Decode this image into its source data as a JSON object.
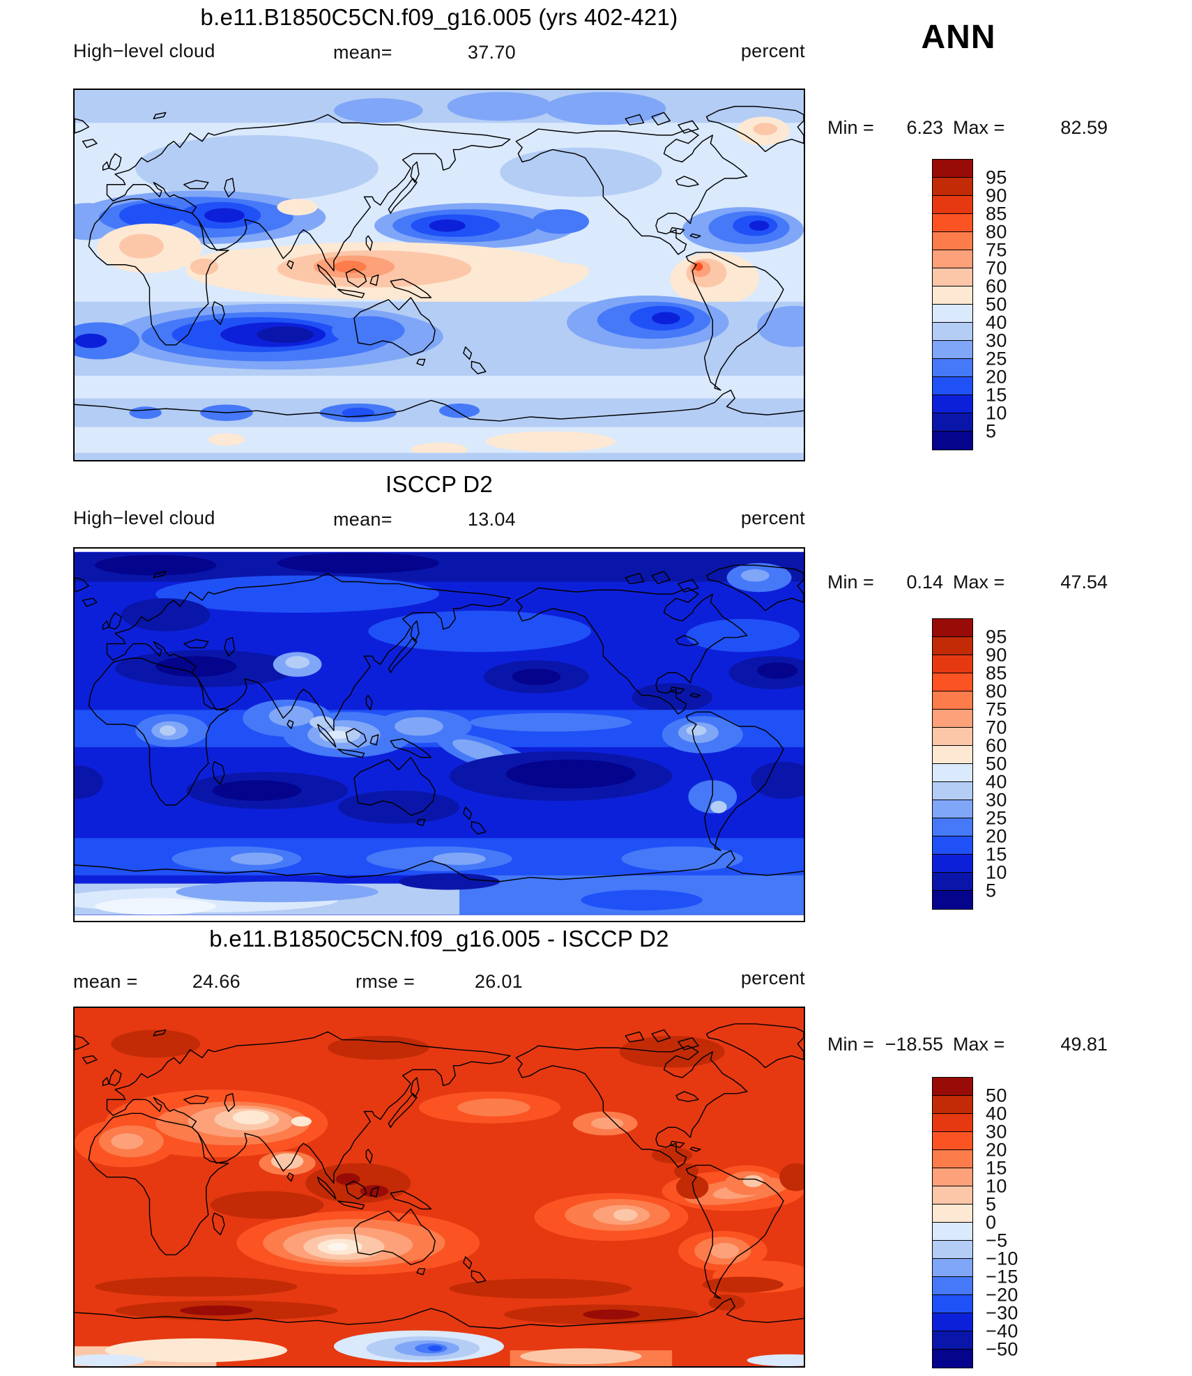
{
  "page": {
    "season": "ANN",
    "background": "#ffffff",
    "text_color": "#000000"
  },
  "colorbar_palette": [
    "#990b06",
    "#c22b06",
    "#e63911",
    "#fc5323",
    "#fc7c4b",
    "#fca179",
    "#fcc7a9",
    "#fde8d3",
    "#dae9fc",
    "#b4cdf5",
    "#80a6f7",
    "#4579f8",
    "#2051f6",
    "#0d20d9",
    "#0a16a9",
    "#04048d"
  ],
  "panels": [
    {
      "title": "b.e11.B1850C5CN.f09_g16.005 (yrs 402-421)",
      "variable": "High−level cloud",
      "units": "percent",
      "stats": [
        {
          "label": "mean=",
          "value": "37.70"
        }
      ],
      "minmax": {
        "min_label": "Min =",
        "min_value": "6.23",
        "max_label": "Max =",
        "max_value": "82.59"
      },
      "colorbar_labels": [
        "95",
        "90",
        "85",
        "80",
        "75",
        "70",
        "60",
        "50",
        "40",
        "30",
        "25",
        "20",
        "15",
        "10",
        "5"
      ]
    },
    {
      "title": "ISCCP D2",
      "variable": "High−level cloud",
      "units": "percent",
      "stats": [
        {
          "label": "mean=",
          "value": "13.04"
        }
      ],
      "minmax": {
        "min_label": "Min =",
        "min_value": "0.14",
        "max_label": "Max =",
        "max_value": "47.54"
      },
      "colorbar_labels": [
        "95",
        "90",
        "85",
        "80",
        "75",
        "70",
        "60",
        "50",
        "40",
        "30",
        "25",
        "20",
        "15",
        "10",
        "5"
      ]
    },
    {
      "title": "b.e11.B1850C5CN.f09_g16.005 - ISCCP D2",
      "variable": "",
      "units": "percent",
      "stats": [
        {
          "label": "mean =",
          "value": "24.66"
        },
        {
          "label": "rmse =",
          "value": "26.01"
        }
      ],
      "minmax": {
        "min_label": "Min =",
        "min_value": "−18.55",
        "max_label": "Max =",
        "max_value": "49.81"
      },
      "colorbar_labels": [
        "50",
        "40",
        "30",
        "20",
        "15",
        "10",
        "5",
        "0",
        "−5",
        "−10",
        "−15",
        "−20",
        "−30",
        "−40",
        "−50"
      ]
    }
  ],
  "chart_data": [
    {
      "type": "heatmap",
      "subtype": "filled-contour-global-map",
      "title": "b.e11.B1850C5CN.f09_g16.005 (yrs 402-421)",
      "variable": "High-level cloud",
      "units": "percent",
      "season": "ANN",
      "mean": 37.7,
      "min": 6.23,
      "max": 82.59,
      "colorbar": {
        "position": "right",
        "boundaries": [
          95,
          90,
          85,
          80,
          75,
          70,
          60,
          50,
          40,
          30,
          25,
          20,
          15,
          10,
          5
        ],
        "colors_top_to_bottom": [
          "#990b06",
          "#c22b06",
          "#e63911",
          "#fc5323",
          "#fc7c4b",
          "#fca179",
          "#fcc7a9",
          "#fde8d3",
          "#dae9fc",
          "#b4cdf5",
          "#80a6f7",
          "#4579f8",
          "#2051f6",
          "#0d20d9",
          "#0a16a9",
          "#04048d"
        ]
      }
    },
    {
      "type": "heatmap",
      "subtype": "filled-contour-global-map",
      "title": "ISCCP D2",
      "variable": "High-level cloud",
      "units": "percent",
      "season": "ANN",
      "mean": 13.04,
      "min": 0.14,
      "max": 47.54,
      "colorbar": {
        "position": "right",
        "boundaries": [
          95,
          90,
          85,
          80,
          75,
          70,
          60,
          50,
          40,
          30,
          25,
          20,
          15,
          10,
          5
        ],
        "colors_top_to_bottom": [
          "#990b06",
          "#c22b06",
          "#e63911",
          "#fc5323",
          "#fc7c4b",
          "#fca179",
          "#fcc7a9",
          "#fde8d3",
          "#dae9fc",
          "#b4cdf5",
          "#80a6f7",
          "#4579f8",
          "#2051f6",
          "#0d20d9",
          "#0a16a9",
          "#04048d"
        ]
      }
    },
    {
      "type": "heatmap",
      "subtype": "filled-contour-global-map-difference",
      "title": "b.e11.B1850C5CN.f09_g16.005 - ISCCP D2",
      "units": "percent",
      "season": "ANN",
      "mean": 24.66,
      "rmse": 26.01,
      "min": -18.55,
      "max": 49.81,
      "colorbar": {
        "position": "right",
        "boundaries": [
          50,
          40,
          30,
          20,
          15,
          10,
          5,
          0,
          -5,
          -10,
          -15,
          -20,
          -30,
          -40,
          -50
        ],
        "colors_top_to_bottom": [
          "#990b06",
          "#c22b06",
          "#e63911",
          "#fc5323",
          "#fc7c4b",
          "#fca179",
          "#fcc7a9",
          "#fde8d3",
          "#dae9fc",
          "#b4cdf5",
          "#80a6f7",
          "#4579f8",
          "#2051f6",
          "#0d20d9",
          "#0a16a9",
          "#04048d"
        ]
      }
    }
  ]
}
